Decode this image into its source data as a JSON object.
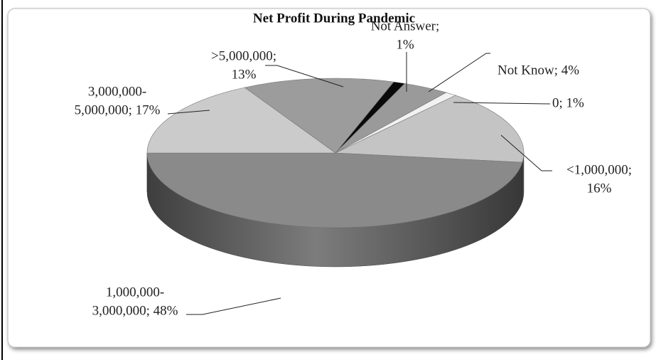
{
  "chart_data": {
    "type": "pie3d",
    "title": "Net Profit During Pandemic",
    "values": [
      1,
      4,
      1,
      16,
      48,
      17,
      13
    ],
    "value_labels": [
      [
        "Not Answer;",
        "1%"
      ],
      [
        "Not Know; 4%"
      ],
      [
        "0; 1%"
      ],
      [
        "<1,000,000;",
        "16%"
      ],
      [
        "1,000,000-",
        "3,000,000; 48%"
      ],
      [
        "3,000,000-",
        "5,000,000; 17%"
      ],
      [
        ">5,000,000;",
        "13%"
      ]
    ],
    "colors": [
      "#0a0a0a",
      "#9a9a9a",
      "#f2f2f2",
      "#c4c4c4",
      "#8a8a8a",
      "#cbcbcb",
      "#9c9c9c"
    ]
  }
}
